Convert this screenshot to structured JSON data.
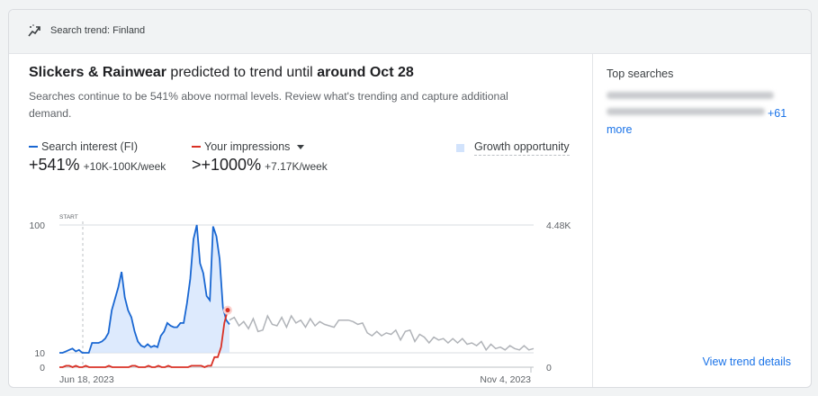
{
  "header": {
    "title": "Search trend: Finland",
    "icon": "trending-up-icon"
  },
  "headline": {
    "prefix": "Slickers & Rainwear",
    "middle": " predicted to trend until ",
    "date": "around Oct 28"
  },
  "subtitle": "Searches continue to be 541% above normal levels. Review what's trending and capture additional demand.",
  "metrics": [
    {
      "label": "Search interest (FI)",
      "value": "+541%",
      "detail": "+10K-100K/week",
      "color": "#1967d2"
    },
    {
      "label": "Your impressions",
      "value": ">+1000%",
      "detail": "+7.17K/week",
      "color": "#d93025"
    }
  ],
  "growth_label": "Growth opportunity",
  "side": {
    "title": "Top searches",
    "more_count": "+61",
    "more_word": "more",
    "view_details": "View trend details"
  },
  "chart_labels": {
    "start": "START",
    "y_left_top": "100",
    "y_left_mid": "10",
    "y_left_bottom": "0",
    "y_right_top": "4.48K",
    "y_right_bottom": "0",
    "x_start": "Jun 18, 2023",
    "x_end": "Nov 4, 2023"
  },
  "chart_data": {
    "type": "line",
    "x_range": [
      "Jun 18, 2023",
      "Nov 4, 2023"
    ],
    "y_left_ticks": [
      0,
      10,
      100
    ],
    "y_right_ticks": [
      "0",
      "4.48K"
    ],
    "series": [
      {
        "name": "Search interest (FI)",
        "color": "#1967d2",
        "values": [
          10,
          10,
          11,
          12,
          13,
          11,
          12,
          10,
          10,
          10,
          17,
          17,
          17,
          18,
          20,
          24,
          40,
          48,
          56,
          67,
          49,
          40,
          35,
          25,
          18,
          15,
          14,
          16,
          14,
          15,
          14,
          22,
          25,
          31,
          29,
          28,
          28,
          31,
          31,
          45,
          62,
          90,
          100,
          73,
          66,
          50,
          47,
          99,
          92,
          76,
          42,
          33,
          30
        ]
      },
      {
        "name": "Your impressions",
        "color": "#d93025",
        "values": [
          0,
          0,
          1,
          1,
          0,
          1,
          0,
          0,
          1,
          0,
          0,
          0,
          0,
          0,
          0,
          1,
          0,
          0,
          0,
          0,
          0,
          0,
          1,
          1,
          0,
          0,
          0,
          1,
          0,
          0,
          1,
          0,
          0,
          1,
          0,
          0,
          0,
          0,
          0,
          0,
          1,
          1,
          1,
          1,
          0,
          1,
          1,
          7,
          7,
          14,
          31,
          40
        ]
      },
      {
        "name": "Forecast",
        "color": "#9e9e9e",
        "values": [
          33,
          35,
          29,
          32,
          27,
          34,
          25,
          26,
          36,
          30,
          29,
          35,
          28,
          36,
          31,
          33,
          28,
          34,
          29,
          32,
          30,
          29,
          28,
          33,
          33,
          33,
          32,
          30,
          31,
          24,
          22,
          25,
          22,
          24,
          23,
          26,
          19,
          25,
          26,
          18,
          23,
          21,
          17,
          21,
          19,
          20,
          17,
          20,
          17,
          20,
          16,
          17,
          15,
          18,
          12,
          16,
          13,
          14,
          12,
          15,
          13,
          12,
          15,
          12,
          13
        ]
      }
    ]
  }
}
